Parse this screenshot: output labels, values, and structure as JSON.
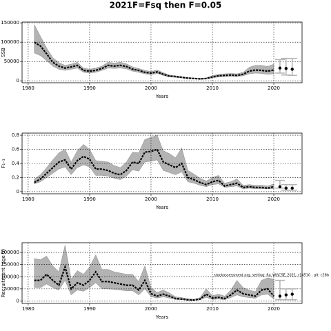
{
  "title": "2021F=Fsq then F=0.05",
  "chart_data": [
    {
      "type": "line",
      "ylabel": "SSB",
      "xlabel": "Years",
      "xlim": [
        1979,
        2024.6
      ],
      "xticks": [
        1980,
        1990,
        2000,
        2010,
        2020
      ],
      "ylim": [
        -5000,
        152000
      ],
      "yticks": [
        0,
        50000,
        100000,
        150000
      ],
      "grid": true,
      "color": "#000000",
      "band_color": "#b3b3b3",
      "x": [
        1981,
        1982,
        1983,
        1984,
        1985,
        1986,
        1987,
        1988,
        1989,
        1990,
        1991,
        1992,
        1993,
        1994,
        1995,
        1996,
        1997,
        1998,
        1999,
        2000,
        2001,
        2002,
        2003,
        2004,
        2005,
        2006,
        2007,
        2008,
        2009,
        2010,
        2011,
        2012,
        2013,
        2014,
        2015,
        2016,
        2017,
        2018,
        2019,
        2020
      ],
      "values": [
        100000,
        90000,
        70000,
        48000,
        38000,
        33000,
        36000,
        40000,
        27000,
        25000,
        27000,
        32000,
        40000,
        38000,
        40000,
        37000,
        30000,
        27000,
        22000,
        20000,
        23000,
        17000,
        12000,
        11000,
        9000,
        7000,
        6000,
        5000,
        6000,
        10000,
        13000,
        14000,
        15000,
        14000,
        17000,
        25000,
        28000,
        27000,
        25000,
        28000
      ],
      "low": [
        72000,
        65000,
        52000,
        38000,
        30000,
        27000,
        30000,
        33000,
        22000,
        20000,
        22000,
        27000,
        33000,
        32000,
        33000,
        31000,
        25000,
        22000,
        18000,
        16000,
        19000,
        14000,
        10000,
        9000,
        7500,
        5500,
        4800,
        4000,
        4800,
        7500,
        10000,
        11000,
        11500,
        11000,
        13000,
        18000,
        20000,
        19000,
        17000,
        18000
      ],
      "high": [
        145000,
        115000,
        85000,
        60000,
        47000,
        40000,
        43000,
        48000,
        33000,
        30000,
        33000,
        38000,
        48000,
        46000,
        48000,
        44000,
        36000,
        32000,
        27000,
        24000,
        28000,
        21000,
        15000,
        13000,
        11000,
        8500,
        7300,
        6200,
        7500,
        13000,
        17000,
        18000,
        19000,
        18000,
        22000,
        35000,
        40000,
        40000,
        37000,
        43000
      ],
      "forecast_x": [
        2021,
        2022,
        2023
      ],
      "forecast_values": [
        33000,
        32000,
        30000
      ],
      "forecast_low": [
        20000,
        15000,
        14000
      ],
      "forecast_high": [
        55000,
        58000,
        58000
      ]
    },
    {
      "type": "line",
      "ylabel": "F₁₋₃",
      "xlabel": "Years",
      "xlim": [
        1979,
        2024.6
      ],
      "xticks": [
        1980,
        1990,
        2000,
        2010,
        2020
      ],
      "ylim": [
        -0.03,
        0.83
      ],
      "yticks": [
        0.0,
        0.2,
        0.4,
        0.6,
        0.8
      ],
      "grid": true,
      "color": "#000000",
      "band_color": "#b3b3b3",
      "x": [
        1981,
        1982,
        1983,
        1984,
        1985,
        1986,
        1987,
        1988,
        1989,
        1990,
        1991,
        1992,
        1993,
        1994,
        1995,
        1996,
        1997,
        1998,
        1999,
        2000,
        2001,
        2002,
        2003,
        2004,
        2005,
        2006,
        2007,
        2008,
        2009,
        2010,
        2011,
        2012,
        2013,
        2014,
        2015,
        2016,
        2017,
        2018,
        2019,
        2020
      ],
      "values": [
        0.13,
        0.18,
        0.26,
        0.34,
        0.42,
        0.45,
        0.32,
        0.44,
        0.5,
        0.46,
        0.32,
        0.32,
        0.3,
        0.26,
        0.24,
        0.3,
        0.42,
        0.4,
        0.56,
        0.57,
        0.6,
        0.42,
        0.38,
        0.34,
        0.4,
        0.2,
        0.17,
        0.13,
        0.1,
        0.14,
        0.16,
        0.08,
        0.1,
        0.12,
        0.06,
        0.07,
        0.06,
        0.06,
        0.05,
        0.07
      ],
      "low": [
        0.11,
        0.14,
        0.2,
        0.26,
        0.32,
        0.35,
        0.24,
        0.34,
        0.38,
        0.35,
        0.23,
        0.23,
        0.22,
        0.19,
        0.17,
        0.22,
        0.31,
        0.29,
        0.42,
        0.43,
        0.45,
        0.3,
        0.27,
        0.24,
        0.28,
        0.14,
        0.12,
        0.09,
        0.07,
        0.1,
        0.11,
        0.06,
        0.07,
        0.08,
        0.04,
        0.05,
        0.04,
        0.04,
        0.04,
        0.04
      ],
      "high": [
        0.18,
        0.24,
        0.34,
        0.45,
        0.55,
        0.6,
        0.42,
        0.58,
        0.67,
        0.6,
        0.44,
        0.43,
        0.42,
        0.37,
        0.34,
        0.42,
        0.56,
        0.55,
        0.74,
        0.77,
        0.8,
        0.58,
        0.54,
        0.48,
        0.62,
        0.3,
        0.25,
        0.19,
        0.15,
        0.2,
        0.23,
        0.12,
        0.14,
        0.18,
        0.09,
        0.1,
        0.09,
        0.09,
        0.08,
        0.11
      ],
      "forecast_x": [
        2021,
        2022,
        2023
      ],
      "forecast_values": [
        0.07,
        0.05,
        0.05
      ],
      "forecast_low": [
        0.05,
        0.02,
        0.02
      ],
      "forecast_high": [
        0.16,
        0.1,
        0.1
      ]
    },
    {
      "type": "line",
      "ylabel": "Recruitment (age 0)",
      "xlabel": "Years",
      "annotation": "stockassessment.org, setting: 6a_WGCSE_2021, r14510 , git: c28b",
      "xlim": [
        1979,
        2024.6
      ],
      "xticks": [
        1980,
        1990,
        2000,
        2010,
        2020
      ],
      "ylim": [
        -10000,
        240000
      ],
      "yticks": [
        0,
        50000,
        100000,
        150000,
        200000
      ],
      "grid": true,
      "color": "#000000",
      "band_color": "#b3b3b3",
      "x": [
        1981,
        1982,
        1983,
        1984,
        1985,
        1986,
        1987,
        1988,
        1989,
        1990,
        1991,
        1992,
        1993,
        1994,
        1995,
        1996,
        1997,
        1998,
        1999,
        2000,
        2001,
        2002,
        2003,
        2004,
        2005,
        2006,
        2007,
        2008,
        2009,
        2010,
        2011,
        2012,
        2013,
        2014,
        2015,
        2016,
        2017,
        2018,
        2019,
        2020
      ],
      "values": [
        85000,
        85000,
        110000,
        85000,
        65000,
        140000,
        50000,
        75000,
        65000,
        85000,
        120000,
        80000,
        80000,
        75000,
        70000,
        65000,
        65000,
        45000,
        85000,
        30000,
        20000,
        28000,
        20000,
        10000,
        8000,
        5000,
        4000,
        8000,
        28000,
        12000,
        15000,
        10000,
        25000,
        45000,
        30000,
        25000,
        20000,
        45000,
        50000,
        20000
      ],
      "low": [
        55000,
        55000,
        70000,
        55000,
        45000,
        85000,
        25000,
        45000,
        40000,
        55000,
        75000,
        50000,
        50000,
        48000,
        45000,
        42000,
        42000,
        25000,
        50000,
        18000,
        12000,
        17000,
        12000,
        6000,
        5000,
        3000,
        2500,
        4500,
        15000,
        6000,
        8000,
        5000,
        14000,
        25000,
        17000,
        14000,
        11000,
        25000,
        28000,
        8000
      ],
      "high": [
        175000,
        170000,
        185000,
        145000,
        120000,
        230000,
        90000,
        125000,
        110000,
        140000,
        190000,
        130000,
        130000,
        120000,
        115000,
        110000,
        110000,
        80000,
        145000,
        55000,
        35000,
        45000,
        33000,
        17000,
        14000,
        9000,
        7000,
        14000,
        50000,
        22000,
        28000,
        20000,
        45000,
        85000,
        55000,
        45000,
        38000,
        85000,
        95000,
        90000
      ],
      "forecast_x": [
        2021,
        2022,
        2023
      ],
      "forecast_values": [
        20000,
        25000,
        28000
      ],
      "forecast_low": [
        5000,
        5000,
        5000
      ],
      "forecast_high": [
        85000,
        50000,
        50000
      ]
    }
  ]
}
